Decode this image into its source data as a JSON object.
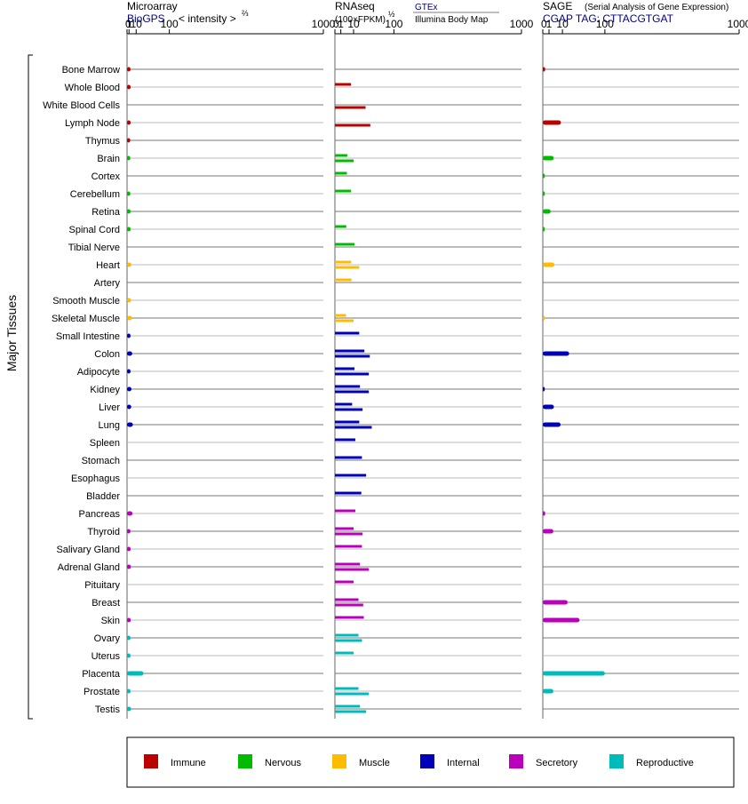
{
  "y_axis_title": "Major Tissues",
  "tissues": [
    "Bone Marrow",
    "Whole Blood",
    "White Blood Cells",
    "Lymph Node",
    "Thymus",
    "Brain",
    "Cortex",
    "Cerebellum",
    "Retina",
    "Spinal Cord",
    "Tibial Nerve",
    "Heart",
    "Artery",
    "Smooth Muscle",
    "Skeletal Muscle",
    "Small Intestine",
    "Colon",
    "Adipocyte",
    "Kidney",
    "Liver",
    "Lung",
    "Spleen",
    "Stomach",
    "Esophagus",
    "Bladder",
    "Pancreas",
    "Thyroid",
    "Salivary Gland",
    "Adrenal Gland",
    "Pituitary",
    "Breast",
    "Skin",
    "Ovary",
    "Uterus",
    "Placenta",
    "Prostate",
    "Testis"
  ],
  "tissue_group": [
    "Immune",
    "Immune",
    "Immune",
    "Immune",
    "Immune",
    "Nervous",
    "Nervous",
    "Nervous",
    "Nervous",
    "Nervous",
    "Nervous",
    "Muscle",
    "Muscle",
    "Muscle",
    "Muscle",
    "Internal",
    "Internal",
    "Internal",
    "Internal",
    "Internal",
    "Internal",
    "Internal",
    "Internal",
    "Internal",
    "Internal",
    "Secretory",
    "Secretory",
    "Secretory",
    "Secretory",
    "Secretory",
    "Secretory",
    "Secretory",
    "Reproductive",
    "Reproductive",
    "Reproductive",
    "Reproductive",
    "Reproductive"
  ],
  "colors": {
    "Immune": "#bb0000",
    "Nervous": "#00bb00",
    "Muscle": "#ffbb00",
    "Internal": "#0000bb",
    "Secretory": "#bb00bb",
    "Reproductive": "#00bbbb"
  },
  "legend": [
    "Immune",
    "Nervous",
    "Muscle",
    "Internal",
    "Secretory",
    "Reproductive"
  ],
  "panels": {
    "microarray": {
      "title": "Microarray",
      "source": "BioGPS",
      "scale_label": "< intensity >",
      "scale_exp": "⅔",
      "ticks": [
        "0",
        "1",
        "10",
        "100",
        "1000"
      ],
      "tick_values": [
        0,
        1,
        10,
        100,
        1000
      ]
    },
    "rnaseq": {
      "title": "RNAseq",
      "scale_label": "(100×FPKM)",
      "scale_exp": "½",
      "source1": "GTEx",
      "source2": "Illumina Body Map",
      "ticks": [
        "0",
        "1",
        "10",
        "100",
        "1000"
      ],
      "tick_values": [
        0,
        1,
        10,
        100,
        1000
      ]
    },
    "sage": {
      "title": "SAGE",
      "subtitle": "(Serial Analysis of Gene Expression)",
      "tag_label": "CGAP TAG: CTTACGTGAT",
      "ticks": [
        "0",
        "1",
        "10",
        "100",
        "1000"
      ],
      "tick_values": [
        0,
        1,
        10,
        100,
        1000
      ]
    }
  },
  "chart_data": [
    {
      "type": "bar",
      "title": "Microarray",
      "scale": "intensity^(2/3)",
      "xlim": [
        0,
        1000
      ],
      "categories": [
        "Bone Marrow",
        "Whole Blood",
        "White Blood Cells",
        "Lymph Node",
        "Thymus",
        "Brain",
        "Cortex",
        "Cerebellum",
        "Retina",
        "Spinal Cord",
        "Tibial Nerve",
        "Heart",
        "Artery",
        "Smooth Muscle",
        "Skeletal Muscle",
        "Small Intestine",
        "Colon",
        "Adipocyte",
        "Kidney",
        "Liver",
        "Lung",
        "Spleen",
        "Stomach",
        "Esophagus",
        "Bladder",
        "Pancreas",
        "Thyroid",
        "Salivary Gland",
        "Adrenal Gland",
        "Pituitary",
        "Breast",
        "Skin",
        "Ovary",
        "Uterus",
        "Placenta",
        "Prostate",
        "Testis"
      ],
      "values": [
        2.4,
        2.5,
        null,
        2.5,
        2.1,
        2.2,
        null,
        2.2,
        2.4,
        2.5,
        null,
        3.1,
        null,
        2.8,
        3.9,
        2.4,
        4.3,
        2.4,
        3.4,
        3.1,
        5.1,
        null,
        null,
        null,
        null,
        4.6,
        2.3,
        2.5,
        2.7,
        null,
        null,
        2.6,
        2.4,
        2.4,
        24,
        2.4,
        2.9
      ]
    },
    {
      "type": "bar",
      "title": "RNAseq",
      "scale": "(100×FPKM)^(1/2)",
      "xlim": [
        0,
        1000
      ],
      "categories": [
        "Bone Marrow",
        "Whole Blood",
        "White Blood Cells",
        "Lymph Node",
        "Thymus",
        "Brain",
        "Cortex",
        "Cerebellum",
        "Retina",
        "Spinal Cord",
        "Tibial Nerve",
        "Heart",
        "Artery",
        "Smooth Muscle",
        "Skeletal Muscle",
        "Small Intestine",
        "Colon",
        "Adipocyte",
        "Kidney",
        "Liver",
        "Lung",
        "Spleen",
        "Stomach",
        "Esophagus",
        "Bladder",
        "Pancreas",
        "Thyroid",
        "Salivary Gland",
        "Adrenal Gland",
        "Pituitary",
        "Breast",
        "Skin",
        "Ovary",
        "Uterus",
        "Placenta",
        "Prostate",
        "Testis"
      ],
      "series": [
        {
          "values": [
            null,
            7.4,
            null,
            null,
            null,
            4.4,
            4.1,
            7.4,
            null,
            3.7,
            11,
            7.4,
            7.9,
            null,
            3.5,
            17,
            25,
            11,
            18,
            8.5,
            17,
            12,
            21,
            28,
            20,
            12,
            10,
            21,
            18,
            10,
            16,
            24,
            16,
            10,
            null,
            16,
            18
          ]
        },
        {
          "values": [
            null,
            null,
            27,
            36,
            null,
            10,
            null,
            null,
            null,
            null,
            null,
            17,
            null,
            null,
            10,
            null,
            35,
            33,
            33,
            22,
            39,
            null,
            null,
            null,
            null,
            null,
            22,
            null,
            33,
            null,
            23,
            null,
            21,
            null,
            null,
            33,
            28
          ]
        }
      ]
    },
    {
      "type": "bar",
      "title": "SAGE",
      "xlim": [
        0,
        1000
      ],
      "categories": [
        "Bone Marrow",
        "Whole Blood",
        "White Blood Cells",
        "Lymph Node",
        "Thymus",
        "Brain",
        "Cortex",
        "Cerebellum",
        "Retina",
        "Spinal Cord",
        "Tibial Nerve",
        "Heart",
        "Artery",
        "Smooth Muscle",
        "Skeletal Muscle",
        "Small Intestine",
        "Colon",
        "Adipocyte",
        "Kidney",
        "Liver",
        "Lung",
        "Spleen",
        "Stomach",
        "Esophagus",
        "Bladder",
        "Pancreas",
        "Thyroid",
        "Salivary Gland",
        "Adrenal Gland",
        "Pituitary",
        "Breast",
        "Skin",
        "Ovary",
        "Uterus",
        "Placenta",
        "Prostate",
        "Testis"
      ],
      "values": [
        0.15,
        null,
        null,
        8.5,
        null,
        3.1,
        0.1,
        0.1,
        1.6,
        0.1,
        null,
        3.5,
        null,
        null,
        0.1,
        null,
        18,
        null,
        0.1,
        3.2,
        8.2,
        null,
        null,
        null,
        null,
        0.15,
        2.9,
        null,
        null,
        null,
        16,
        35,
        null,
        null,
        100,
        2.9,
        null
      ]
    }
  ]
}
